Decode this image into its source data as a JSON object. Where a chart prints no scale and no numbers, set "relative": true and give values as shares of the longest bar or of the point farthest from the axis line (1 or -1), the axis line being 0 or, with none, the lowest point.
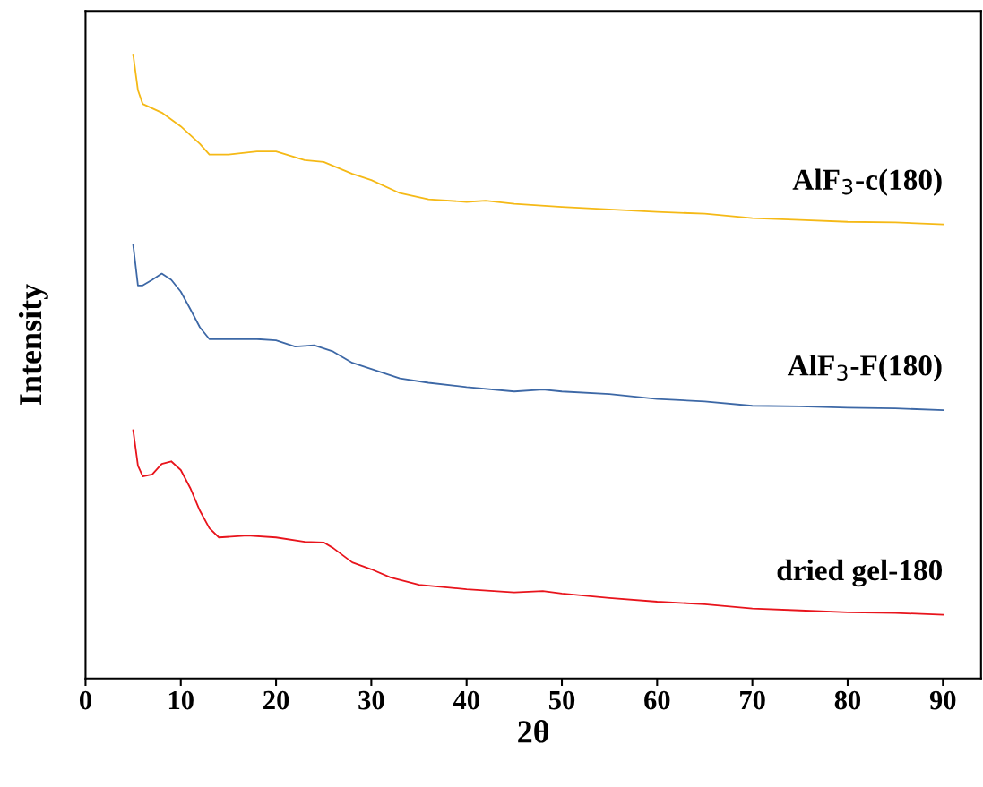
{
  "chart_data": {
    "type": "line",
    "relative": true,
    "xlabel": "2θ",
    "ylabel": "Intensity",
    "xlim": [
      0,
      94
    ],
    "xticks": [
      0,
      10,
      20,
      30,
      40,
      50,
      60,
      70,
      80,
      90
    ],
    "grid": false,
    "legend": false,
    "marker": "none",
    "line_style": "solid",
    "series": [
      {
        "name": "AlF$_{3}$-c(180)",
        "color": "#f5b916",
        "x": [
          5,
          5.5,
          6,
          8,
          10,
          12,
          13,
          15,
          18,
          20,
          23,
          25,
          28,
          30,
          33,
          36,
          40,
          42,
          45,
          50,
          55,
          60,
          65,
          70,
          75,
          80,
          85,
          90
        ],
        "values": [
          1.0,
          0.943,
          0.921,
          0.907,
          0.885,
          0.857,
          0.84,
          0.84,
          0.845,
          0.845,
          0.831,
          0.828,
          0.809,
          0.799,
          0.778,
          0.768,
          0.764,
          0.766,
          0.761,
          0.756,
          0.752,
          0.748,
          0.745,
          0.738,
          0.735,
          0.732,
          0.731,
          0.728
        ]
      },
      {
        "name": "AlF$_{3}$-F(180)",
        "color": "#3d68a6",
        "x": [
          5,
          5.5,
          6,
          7,
          8,
          9,
          10,
          11,
          12,
          13,
          15,
          18,
          20,
          22,
          24,
          26,
          28,
          30,
          33,
          36,
          40,
          45,
          48,
          50,
          55,
          60,
          65,
          70,
          75,
          80,
          85,
          90
        ],
        "values": [
          0.695,
          0.63,
          0.63,
          0.639,
          0.649,
          0.639,
          0.62,
          0.592,
          0.563,
          0.544,
          0.544,
          0.544,
          0.542,
          0.532,
          0.534,
          0.524,
          0.506,
          0.496,
          0.481,
          0.474,
          0.467,
          0.46,
          0.463,
          0.46,
          0.456,
          0.448,
          0.444,
          0.437,
          0.436,
          0.434,
          0.433,
          0.43
        ]
      },
      {
        "name": "dried gel-180",
        "color": "#e8141c",
        "x": [
          5,
          5.5,
          6,
          7,
          8,
          9,
          10,
          11,
          12,
          13,
          14,
          17,
          20,
          23,
          25,
          26,
          28,
          30,
          32,
          35,
          40,
          45,
          48,
          50,
          55,
          60,
          65,
          70,
          75,
          80,
          85,
          90
        ],
        "values": [
          0.398,
          0.341,
          0.324,
          0.327,
          0.344,
          0.348,
          0.334,
          0.305,
          0.269,
          0.241,
          0.226,
          0.229,
          0.226,
          0.219,
          0.218,
          0.209,
          0.186,
          0.175,
          0.162,
          0.15,
          0.143,
          0.138,
          0.14,
          0.136,
          0.129,
          0.123,
          0.119,
          0.112,
          0.109,
          0.106,
          0.105,
          0.102
        ]
      }
    ]
  }
}
